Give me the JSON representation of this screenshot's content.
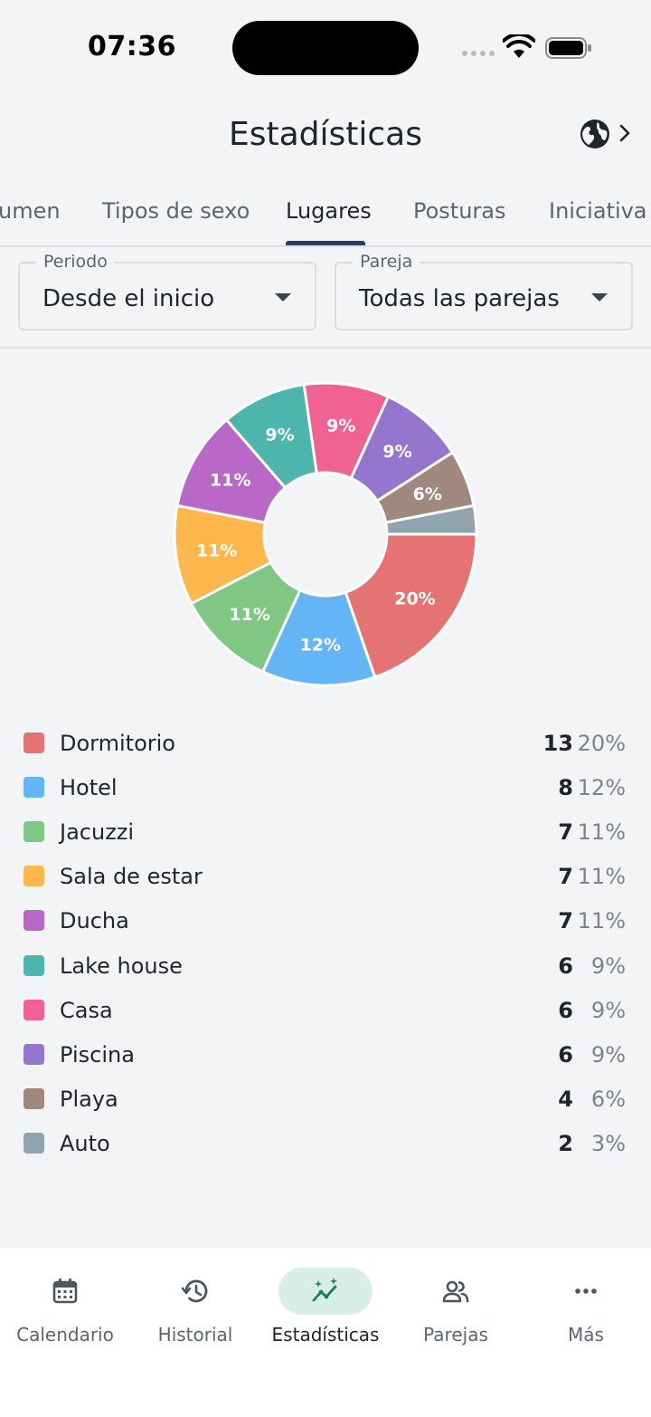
{
  "status_bar": {
    "time": "07:36"
  },
  "header": {
    "title": "Estadísticas"
  },
  "tabs": [
    {
      "label": "umen"
    },
    {
      "label": "Tipos de sexo"
    },
    {
      "label": "Lugares"
    },
    {
      "label": "Posturas"
    },
    {
      "label": "Iniciativa"
    }
  ],
  "filters": {
    "period": {
      "label": "Periodo",
      "value": "Desde el inicio"
    },
    "partner": {
      "label": "Pareja",
      "value": "Todas las parejas"
    }
  },
  "chart_data": {
    "type": "pie",
    "donut": true,
    "categories": [
      "Dormitorio",
      "Hotel",
      "Jacuzzi",
      "Sala de estar",
      "Ducha",
      "Lake house",
      "Casa",
      "Piscina",
      "Playa",
      "Auto"
    ],
    "values": [
      13,
      8,
      7,
      7,
      7,
      6,
      6,
      6,
      4,
      2
    ],
    "percent_labels": [
      "20%",
      "12%",
      "11%",
      "11%",
      "11%",
      "9%",
      "9%",
      "9%",
      "6%",
      ""
    ],
    "colors": [
      "#e57373",
      "#64b5f6",
      "#81c784",
      "#ffb74d",
      "#ba68c8",
      "#4db6ac",
      "#f06292",
      "#9575cd",
      "#a1887f",
      "#90a4ae"
    ]
  },
  "legend": [
    {
      "label": "Dormitorio",
      "count": "13",
      "pct": "20%"
    },
    {
      "label": "Hotel",
      "count": "8",
      "pct": "12%"
    },
    {
      "label": "Jacuzzi",
      "count": "7",
      "pct": "11%"
    },
    {
      "label": "Sala de estar",
      "count": "7",
      "pct": "11%"
    },
    {
      "label": "Ducha",
      "count": "7",
      "pct": "11%"
    },
    {
      "label": "Lake house",
      "count": "6",
      "pct": "9%"
    },
    {
      "label": "Casa",
      "count": "6",
      "pct": "9%"
    },
    {
      "label": "Piscina",
      "count": "6",
      "pct": "9%"
    },
    {
      "label": "Playa",
      "count": "4",
      "pct": "6%"
    },
    {
      "label": "Auto",
      "count": "2",
      "pct": "3%"
    }
  ],
  "bottom_nav": [
    {
      "label": "Calendario",
      "icon": "calendar-icon"
    },
    {
      "label": "Historial",
      "icon": "history-icon"
    },
    {
      "label": "Estadísticas",
      "icon": "stats-icon",
      "active": true
    },
    {
      "label": "Parejas",
      "icon": "people-icon"
    },
    {
      "label": "Más",
      "icon": "more-icon"
    }
  ],
  "colors": {
    "accent_bg": "#d8efe7",
    "accent": "#1f7a5c",
    "tab_indicator": "#2a3f5a"
  }
}
